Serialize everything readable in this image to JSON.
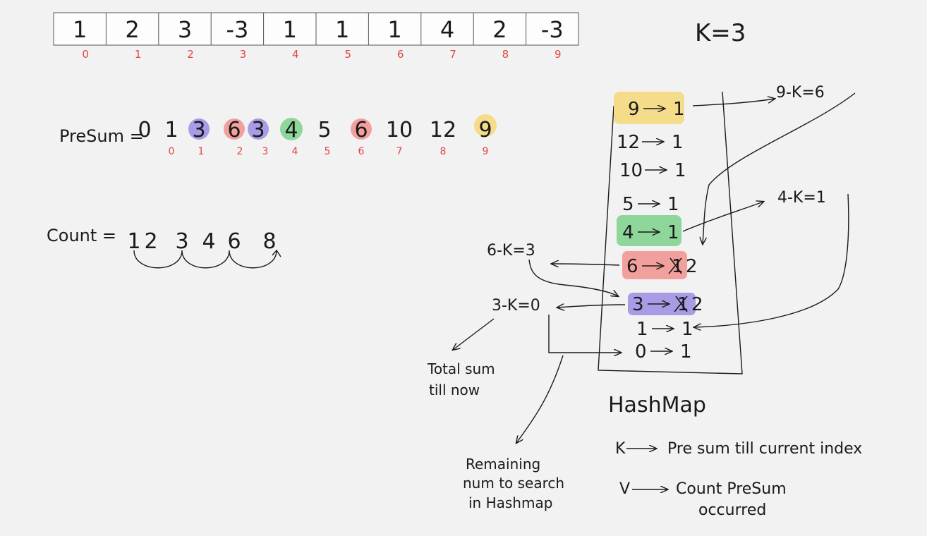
{
  "array": {
    "values": [
      "1",
      "2",
      "3",
      "-3",
      "1",
      "1",
      "1",
      "4",
      "2",
      "-3"
    ],
    "indices": [
      "0",
      "1",
      "2",
      "3",
      "4",
      "5",
      "6",
      "7",
      "8",
      "9"
    ]
  },
  "k_label": "K=3",
  "presum": {
    "label": "PreSum =",
    "values": [
      "0",
      "1",
      "3",
      "6",
      "3",
      "4",
      "5",
      "6",
      "10",
      "12",
      "9"
    ],
    "indices": [
      "0",
      "1",
      "2",
      "3",
      "4",
      "5",
      "6",
      "7",
      "8",
      "9"
    ]
  },
  "count": {
    "label": "Count =",
    "values": [
      "1",
      "2",
      "3",
      "4",
      "6",
      "8"
    ]
  },
  "hashmap": {
    "title": "HashMap",
    "rows": [
      {
        "key": "9",
        "val": "1"
      },
      {
        "key": "12",
        "val": "1"
      },
      {
        "key": "10",
        "val": "1"
      },
      {
        "key": "5",
        "val": "1"
      },
      {
        "key": "4",
        "val": "1"
      },
      {
        "key": "6",
        "old": "1",
        "val": "2"
      },
      {
        "key": "3",
        "old": "1",
        "val": "2"
      },
      {
        "key": "1",
        "val": "1"
      },
      {
        "key": "0",
        "val": "1"
      }
    ],
    "legend_k": "K",
    "legend_k_text": "Pre sum till current index",
    "legend_v": "V",
    "legend_v_text_1": "Count PreSum",
    "legend_v_text_2": "occurred"
  },
  "annotations": {
    "nine_minus_k": "9-K=6",
    "four_minus_k": "4-K=1",
    "six_minus_k": "6-K=3",
    "three_minus_k": "3-K=0",
    "total_sum_1": "Total sum",
    "total_sum_2": "till now",
    "remaining_1": "Remaining",
    "remaining_2": "num to search",
    "remaining_3": "in Hashmap"
  },
  "colors": {
    "yellow": "#f5dc8a",
    "purple": "#a99be6",
    "red": "#f2a09d",
    "green": "#8fd69a",
    "index_red": "#e0473f"
  }
}
